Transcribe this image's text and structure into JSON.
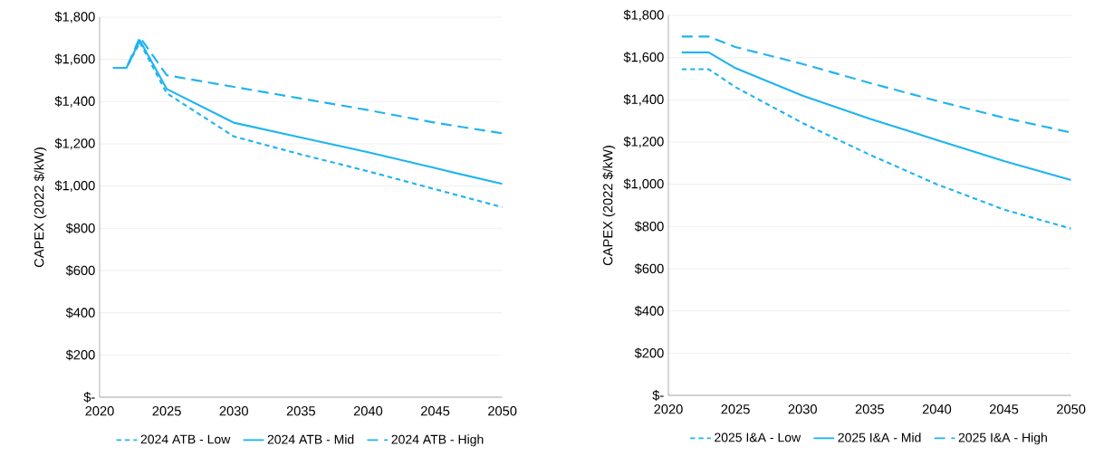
{
  "chart_data": [
    {
      "type": "line",
      "ylabel": "CAPEX (2022 $/kW)",
      "xlim": [
        2020,
        2050
      ],
      "xticks": [
        2020,
        2025,
        2030,
        2035,
        2040,
        2045,
        2050
      ],
      "ylim": [
        0,
        1800
      ],
      "yticks": [
        {
          "value": 0,
          "label": "$-"
        },
        {
          "value": 200,
          "label": "$200"
        },
        {
          "value": 400,
          "label": "$400"
        },
        {
          "value": 600,
          "label": "$600"
        },
        {
          "value": 800,
          "label": "$800"
        },
        {
          "value": 1000,
          "label": "$1,000"
        },
        {
          "value": 1200,
          "label": "$1,200"
        },
        {
          "value": 1400,
          "label": "$1,400"
        },
        {
          "value": 1600,
          "label": "$1,600"
        },
        {
          "value": 1800,
          "label": "$1,800"
        }
      ],
      "grid": "y",
      "legend": "bottom",
      "marker": "none",
      "x": [
        2021,
        2022,
        2023,
        2025,
        2030,
        2035,
        2040,
        2045,
        2050
      ],
      "series": [
        {
          "name": "2024 ATB - Low",
          "color": "#1fb4ef",
          "line_style": "dotted",
          "values": [
            1560,
            1560,
            1680,
            1440,
            1235,
            1150,
            1070,
            985,
            900
          ]
        },
        {
          "name": "2024 ATB - Mid",
          "color": "#1fb4ef",
          "line_style": "solid",
          "values": [
            1560,
            1560,
            1690,
            1460,
            1300,
            1230,
            1160,
            1085,
            1010
          ]
        },
        {
          "name": "2024 ATB - High",
          "color": "#1fb4ef",
          "line_style": "dashed",
          "values": [
            1560,
            1560,
            1705,
            1525,
            1470,
            1415,
            1360,
            1300,
            1250
          ]
        }
      ]
    },
    {
      "type": "line",
      "ylabel": "CAPEX (2022 $/kW)",
      "xlim": [
        2020,
        2050
      ],
      "xticks": [
        2020,
        2025,
        2030,
        2035,
        2040,
        2045,
        2050
      ],
      "ylim": [
        0,
        1800
      ],
      "yticks": [
        {
          "value": 0,
          "label": "$-"
        },
        {
          "value": 200,
          "label": "$200"
        },
        {
          "value": 400,
          "label": "$400"
        },
        {
          "value": 600,
          "label": "$600"
        },
        {
          "value": 800,
          "label": "$800"
        },
        {
          "value": 1000,
          "label": "$1,000"
        },
        {
          "value": 1200,
          "label": "$1,200"
        },
        {
          "value": 1400,
          "label": "$1,400"
        },
        {
          "value": 1600,
          "label": "$1,600"
        },
        {
          "value": 1800,
          "label": "$1,800"
        }
      ],
      "grid": "y",
      "legend": "bottom",
      "marker": "none",
      "x": [
        2021,
        2023,
        2025,
        2030,
        2035,
        2040,
        2045,
        2050
      ],
      "series": [
        {
          "name": "2025 I&A - Low",
          "color": "#1fb4ef",
          "line_style": "dotted",
          "values": [
            1545,
            1545,
            1460,
            1290,
            1140,
            1000,
            880,
            790
          ]
        },
        {
          "name": "2025 I&A - Mid",
          "color": "#1fb4ef",
          "line_style": "solid",
          "values": [
            1625,
            1625,
            1550,
            1420,
            1310,
            1210,
            1110,
            1020
          ]
        },
        {
          "name": "2025 I&A - High",
          "color": "#1fb4ef",
          "line_style": "dashed",
          "values": [
            1700,
            1700,
            1650,
            1570,
            1480,
            1395,
            1315,
            1245
          ]
        }
      ]
    }
  ]
}
